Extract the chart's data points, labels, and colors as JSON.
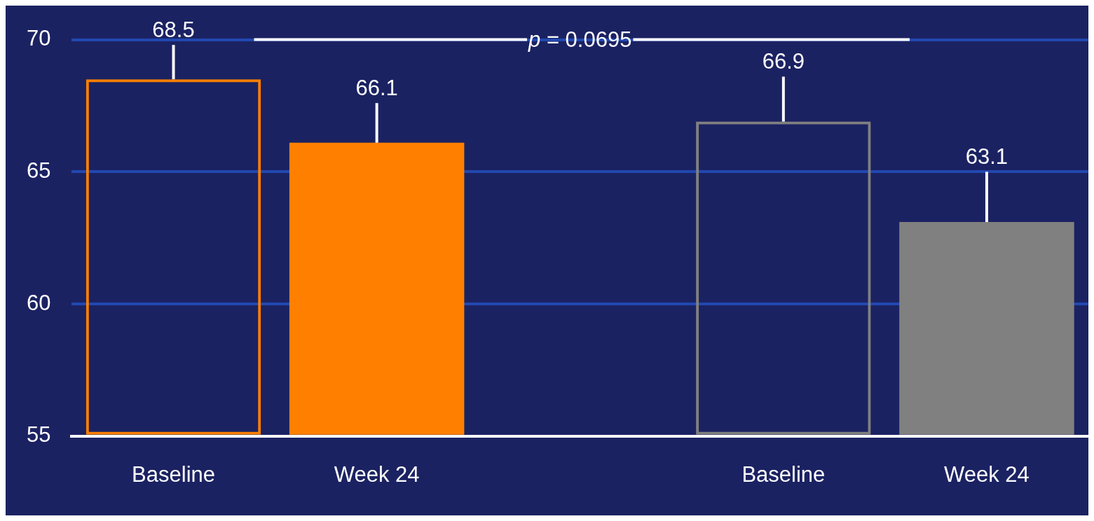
{
  "chart_data": {
    "type": "bar",
    "categories": [
      "Baseline",
      "Week 24",
      null,
      "Baseline",
      "Week 24"
    ],
    "series": [
      {
        "colors": [
          "#ff8000",
          null,
          null,
          "#808080",
          null
        ],
        "values": [
          68.5,
          null,
          null,
          66.9,
          null
        ],
        "errors": [
          [
            68.5,
            69.8
          ],
          null,
          null,
          [
            66.9,
            68.6
          ],
          null
        ]
      },
      {
        "colors": [
          null,
          "#ff8000",
          null,
          null,
          "#808080"
        ],
        "values": [
          null,
          66.1,
          null,
          null,
          63.1
        ],
        "errors": [
          null,
          [
            66.1,
            67.6
          ],
          null,
          null,
          [
            63.1,
            65.0
          ]
        ]
      }
    ],
    "data_labels": true,
    "ylim": [
      55,
      70
    ],
    "yticks": [
      55,
      60,
      65,
      70
    ],
    "grid": "y",
    "annotations": [
      "p = 0.0695"
    ],
    "legend": false
  }
}
